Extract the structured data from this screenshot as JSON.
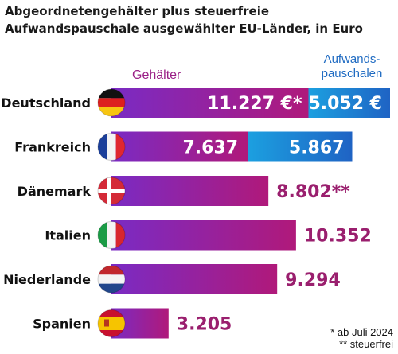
{
  "chart_data": {
    "type": "bar",
    "title_lines": [
      "Abgeordnetengehälter plus steuerfreie",
      "Aufwandspauschale ausgewählter EU-Länder, in Euro"
    ],
    "categories": [
      "Deutschland",
      "Frankreich",
      "Dänemark",
      "Italien",
      "Niederlande",
      "Spanien"
    ],
    "series": [
      {
        "name": "Gehälter",
        "values": [
          11227,
          7637,
          8802,
          10352,
          9294,
          3205
        ],
        "labels": [
          "11.227 €*",
          "7.637",
          "8.802**",
          "10.352",
          "9.294",
          "3.205"
        ]
      },
      {
        "name": "Aufwandspauschalen",
        "values": [
          5052,
          5867,
          null,
          null,
          null,
          null
        ],
        "labels": [
          "5.052 €",
          "5.867",
          "",
          "",
          "",
          ""
        ]
      }
    ],
    "legend": {
      "salary": "Gehälter",
      "allowance": [
        "Aufwands-",
        "pauschalen"
      ]
    },
    "footnotes": [
      "* ab Juli 2024",
      "** steuerfrei"
    ],
    "colors": {
      "salary_start": "#7a2bc4",
      "salary_end": "#b0197a",
      "allowance_start": "#1ca0e0",
      "allowance_end": "#1f63c4",
      "value_text": "#9a1f6e"
    },
    "flag_icons": [
      "germany-flag-icon",
      "france-flag-icon",
      "denmark-flag-icon",
      "italy-flag-icon",
      "netherlands-flag-icon",
      "spain-flag-icon"
    ]
  }
}
